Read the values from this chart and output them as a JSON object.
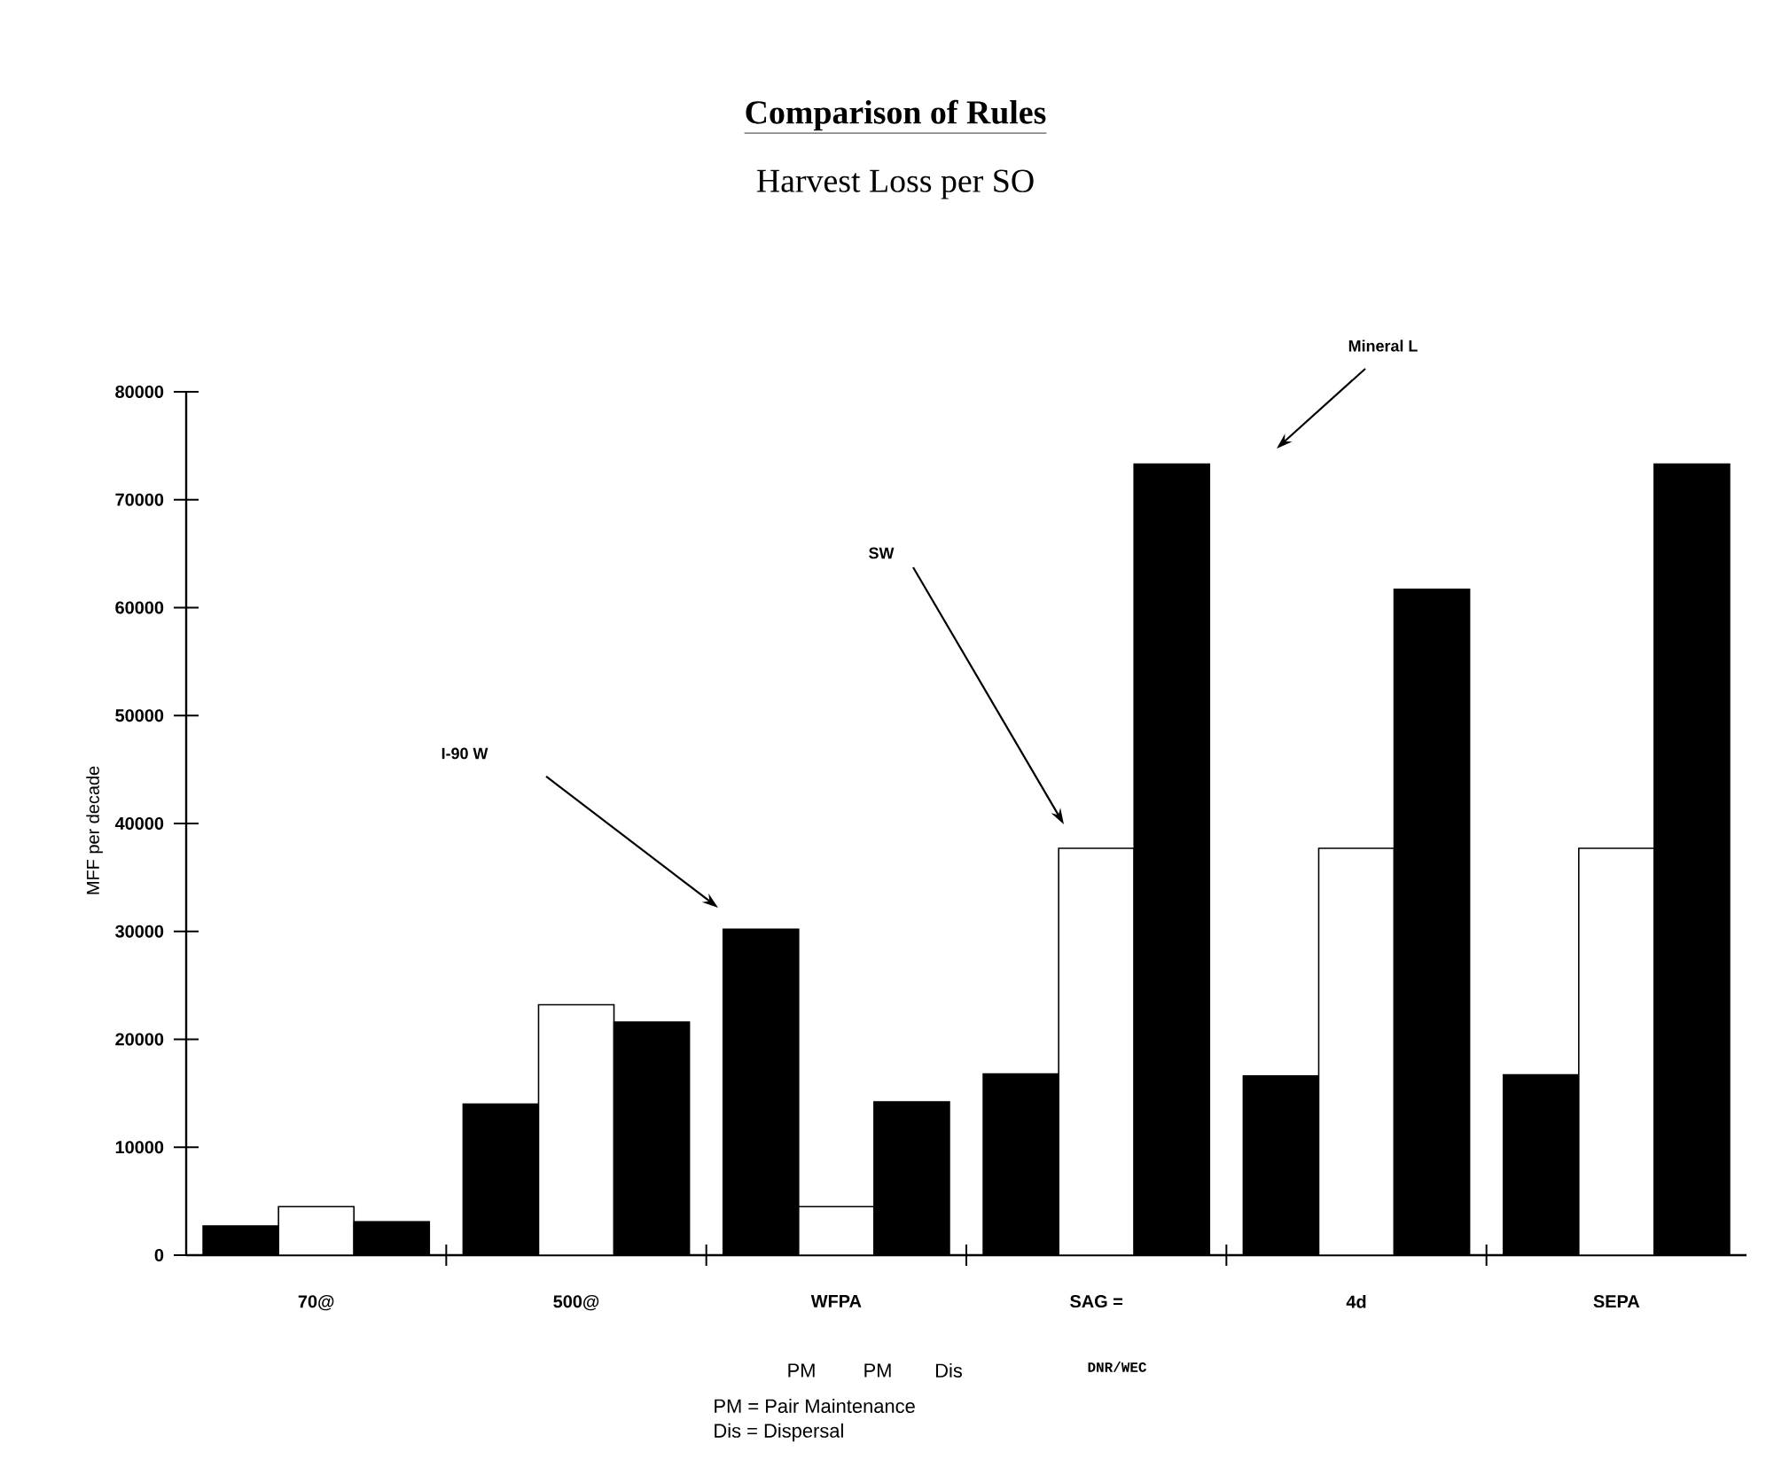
{
  "chart_data": {
    "type": "bar",
    "title": "Comparison of Rules",
    "subtitle": "Harvest Loss per SO",
    "ylabel": "MFF per decade",
    "categories": [
      "70@",
      "500@",
      "WFPA",
      "SAG =",
      "4d",
      "SEPA"
    ],
    "series": [
      {
        "color": "#000000",
        "values": [
          2700,
          14000,
          30200,
          16800,
          16600,
          16700
        ]
      },
      {
        "color": "#ffffff",
        "values": [
          4500,
          23200,
          4500,
          37700,
          37700,
          37700
        ]
      },
      {
        "color": "#000000",
        "values": [
          3100,
          21600,
          14200,
          73300,
          61700,
          73300
        ]
      }
    ],
    "ylim": [
      0,
      80000
    ],
    "yticks": [
      0,
      10000,
      20000,
      30000,
      40000,
      50000,
      60000,
      70000,
      80000
    ],
    "grid": false,
    "annotations": [
      "I-90 W",
      "SW",
      "Mineral L",
      "DNR/WEC",
      "PM",
      "PM",
      "Dis",
      "PM = Pair Maintenance",
      "Dis = Dispersal"
    ]
  }
}
